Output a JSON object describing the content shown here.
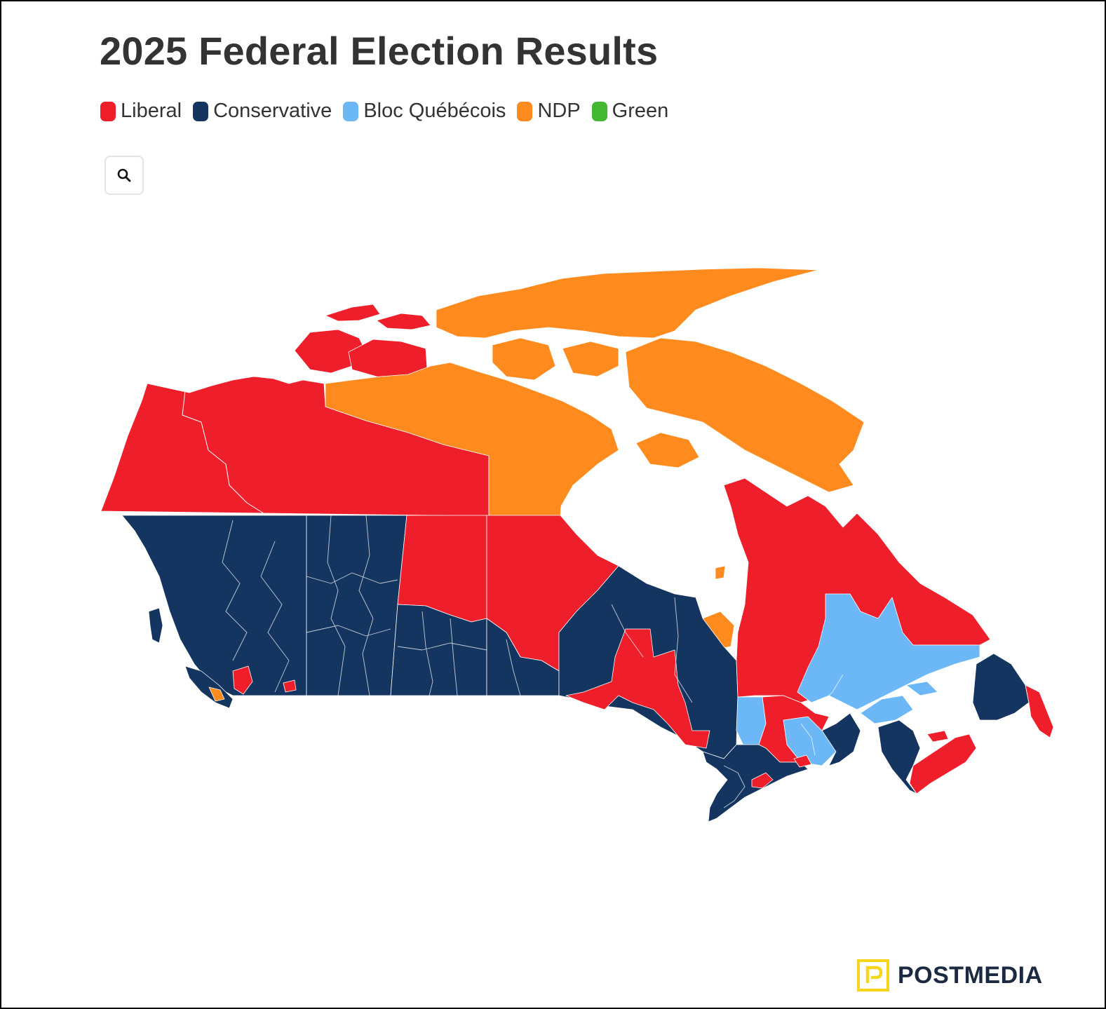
{
  "title": "2025 Federal Election Results",
  "legend": [
    {
      "label": "Liberal",
      "color": "#ee1f2a"
    },
    {
      "label": "Conservative",
      "color": "#14355f"
    },
    {
      "label": "Bloc Québécois",
      "color": "#6cb8f7"
    },
    {
      "label": "NDP",
      "color": "#ff8a1e"
    },
    {
      "label": "Green",
      "color": "#45b832"
    }
  ],
  "search": {
    "icon": "search-icon"
  },
  "logo": {
    "text": "POSTMEDIA",
    "mark": "P",
    "mark_color": "#f5d61c"
  }
}
